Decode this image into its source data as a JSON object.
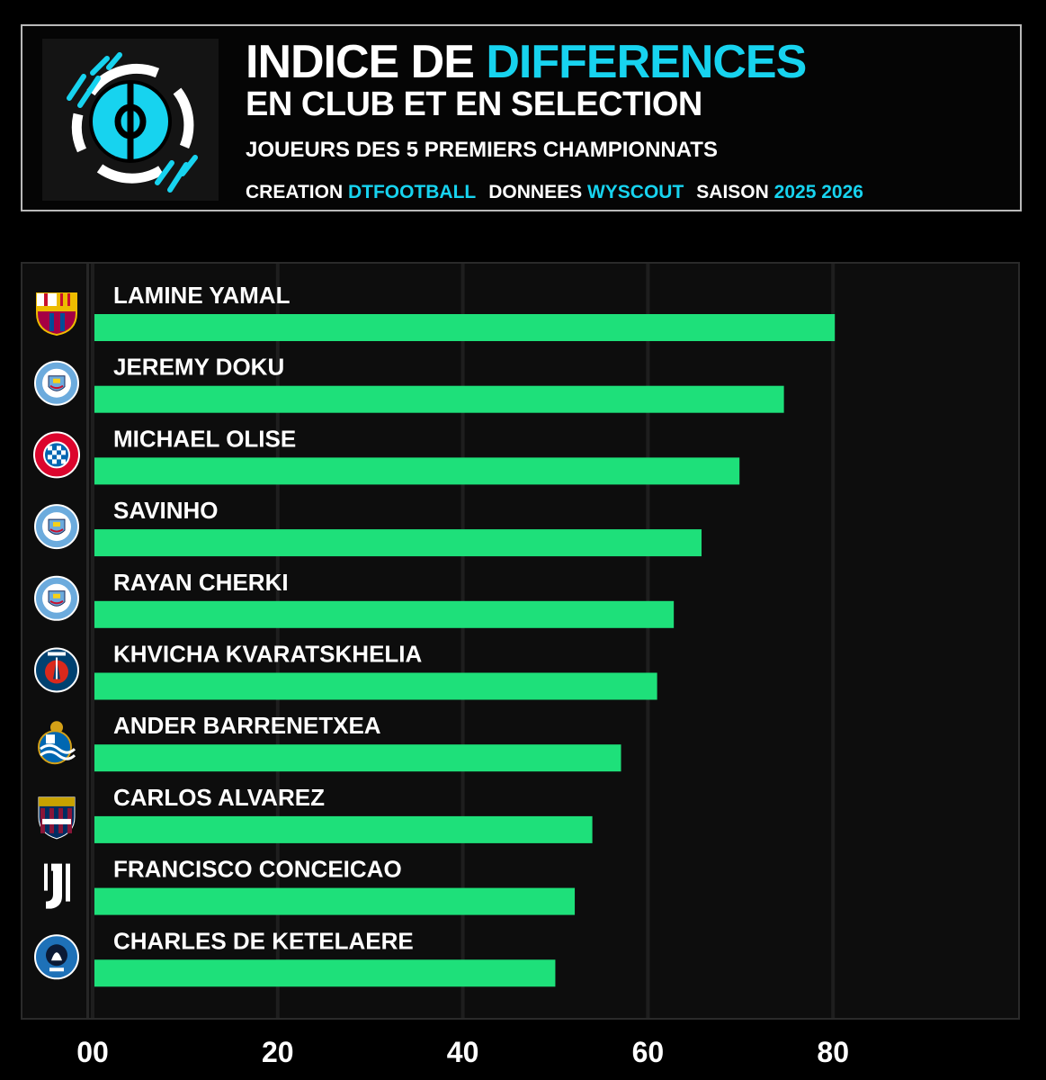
{
  "header": {
    "title_part1": "INDICE DE",
    "title_accent": "DIFFERENCES",
    "title_line2": "EN CLUB ET EN SELECTION",
    "subtitle": "JOUEURS DES 5 PREMIERS CHAMPIONNATS",
    "credit_label": "CREATION",
    "credit_value": "DTFOOTBALL",
    "data_label": "DONNEES",
    "data_value": "WYSCOUT",
    "season_label": "SAISON",
    "season_value": "2025 2026"
  },
  "colors": {
    "accent": "#17d3ef",
    "bar": "#1ee07a",
    "background": "#000000",
    "panel": "#0d0d0d",
    "grid": "#1e1e1e"
  },
  "chart_data": {
    "type": "bar",
    "orientation": "horizontal",
    "categories": [
      "LAMINE YAMAL",
      "JEREMY DOKU",
      "MICHAEL OLISE",
      "SAVINHO",
      "RAYAN CHERKI",
      "KHVICHA KVARATSKHELIA",
      "ANDER BARRENETXEA",
      "CARLOS ALVAREZ",
      "FRANCISCO CONCEICAO",
      "CHARLES DE KETELAERE"
    ],
    "clubs": [
      "fc-barcelona-crest-icon",
      "manchester-city-crest-icon",
      "bayern-munich-crest-icon",
      "manchester-city-crest-icon",
      "manchester-city-crest-icon",
      "psg-crest-icon",
      "real-sociedad-crest-icon",
      "levante-crest-icon",
      "juventus-crest-icon",
      "atalanta-crest-icon"
    ],
    "values": [
      80,
      74.5,
      69.7,
      65.6,
      62.6,
      60.8,
      56.9,
      53.8,
      51.9,
      49.8
    ],
    "xlim": [
      0,
      100
    ],
    "xticks": [
      "00",
      "20",
      "40",
      "60",
      "80"
    ],
    "xtick_values": [
      0,
      20,
      40,
      60,
      80
    ],
    "grid": true
  }
}
